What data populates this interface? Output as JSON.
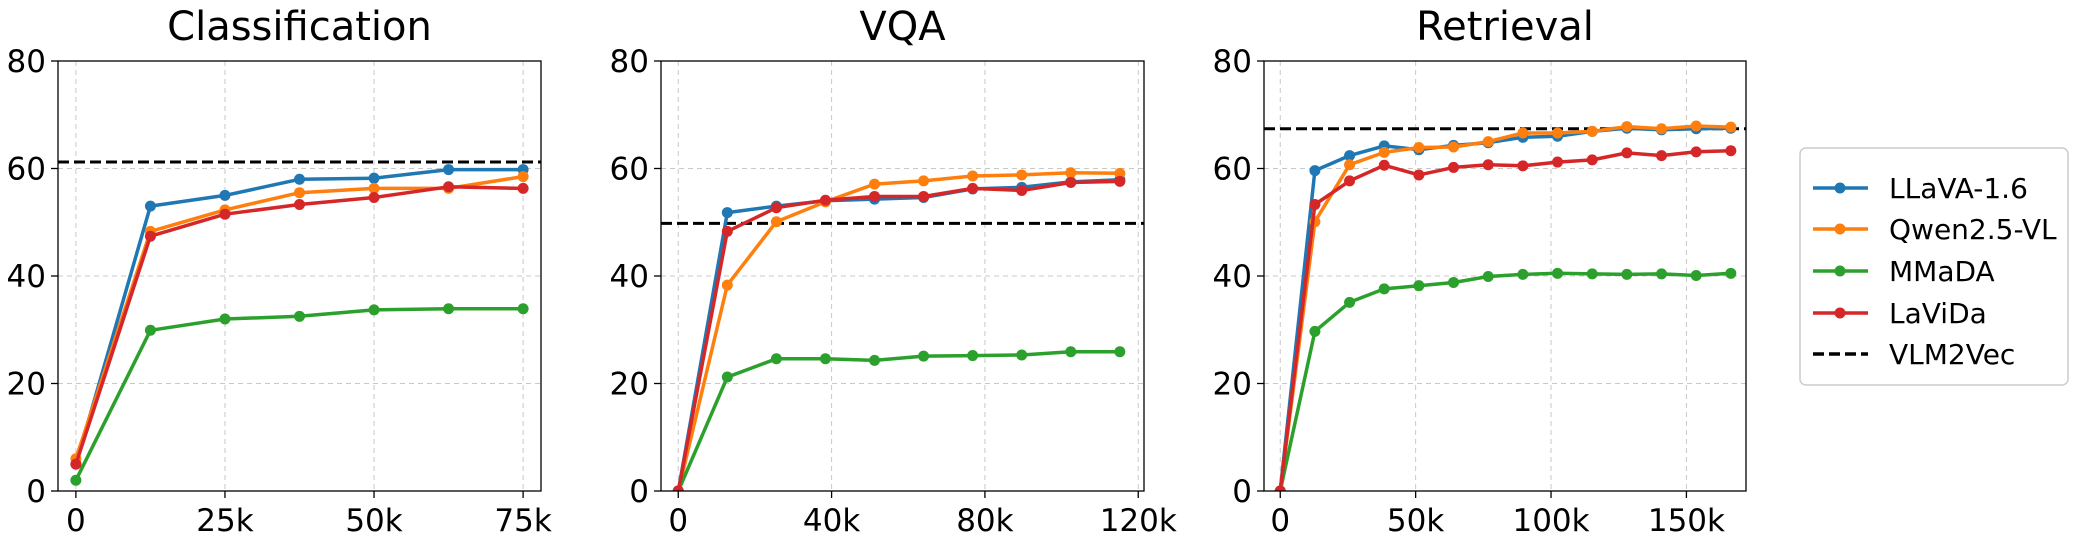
{
  "legend": {
    "entries": [
      {
        "label": "LLaVA-1.6",
        "color": "#1f77b4",
        "style": "line-marker"
      },
      {
        "label": "Qwen2.5-VL",
        "color": "#ff7f0e",
        "style": "line-marker"
      },
      {
        "label": "MMaDA",
        "color": "#2ca02c",
        "style": "line-marker"
      },
      {
        "label": "LaViDa",
        "color": "#d62728",
        "style": "line-marker"
      },
      {
        "label": "VLM2Vec",
        "color": "#000000",
        "style": "dashed"
      }
    ]
  },
  "chart_data": [
    {
      "type": "line",
      "title": "Classification",
      "xlim": [
        -3000,
        78000
      ],
      "ylim": [
        0,
        80
      ],
      "xticks": [
        0,
        25000,
        50000,
        75000
      ],
      "xtick_labels": [
        "0",
        "25k",
        "50k",
        "75k"
      ],
      "yticks": [
        0,
        20,
        40,
        60,
        80
      ],
      "ytick_labels": [
        "0",
        "20",
        "40",
        "60",
        "80"
      ],
      "grid": true,
      "x": [
        0,
        12500,
        25000,
        37500,
        50000,
        62500,
        75000
      ],
      "series": [
        {
          "name": "LLaVA-1.6",
          "color": "#1f77b4",
          "values": [
            5,
            53,
            55,
            58,
            58.2,
            59.8,
            59.8
          ]
        },
        {
          "name": "Qwen2.5-VL",
          "color": "#ff7f0e",
          "values": [
            6,
            48.3,
            52.3,
            55.5,
            56.3,
            56.3,
            58.5
          ]
        },
        {
          "name": "MMaDA",
          "color": "#2ca02c",
          "values": [
            2,
            29.9,
            32,
            32.5,
            33.7,
            33.9,
            33.9
          ]
        },
        {
          "name": "LaViDa",
          "color": "#d62728",
          "values": [
            5,
            47.4,
            51.5,
            53.3,
            54.6,
            56.6,
            56.3
          ]
        }
      ],
      "reference": {
        "name": "VLM2Vec",
        "value": 61.2
      }
    },
    {
      "type": "line",
      "title": "VQA",
      "xlim": [
        -4500,
        121500
      ],
      "ylim": [
        0,
        80
      ],
      "xticks": [
        0,
        40000,
        80000,
        120000
      ],
      "xtick_labels": [
        "0",
        "40k",
        "80k",
        "120k"
      ],
      "yticks": [
        0,
        20,
        40,
        60,
        80
      ],
      "ytick_labels": [
        "0",
        "20",
        "40",
        "60",
        "80"
      ],
      "grid": true,
      "x": [
        0,
        12800,
        25600,
        38400,
        51200,
        64000,
        76800,
        89600,
        102400,
        115200
      ],
      "series": [
        {
          "name": "LLaVA-1.6",
          "color": "#1f77b4",
          "values": [
            0,
            51.8,
            53,
            54,
            54.3,
            54.6,
            56.2,
            56.5,
            57.5,
            57.9
          ]
        },
        {
          "name": "Qwen2.5-VL",
          "color": "#ff7f0e",
          "values": [
            0,
            38.3,
            50.1,
            53.8,
            57.1,
            57.7,
            58.6,
            58.8,
            59.2,
            59.1
          ]
        },
        {
          "name": "MMaDA",
          "color": "#2ca02c",
          "values": [
            0,
            21.2,
            24.6,
            24.6,
            24.3,
            25.1,
            25.2,
            25.3,
            25.9,
            25.9
          ]
        },
        {
          "name": "LaViDa",
          "color": "#d62728",
          "values": [
            0,
            48.3,
            52.7,
            54.1,
            54.8,
            54.8,
            56.3,
            55.9,
            57.4,
            57.6
          ]
        }
      ],
      "reference": {
        "name": "VLM2Vec",
        "value": 49.8
      }
    },
    {
      "type": "line",
      "title": "Retrieval",
      "xlim": [
        -6000,
        172000
      ],
      "ylim": [
        0,
        80
      ],
      "xticks": [
        0,
        50000,
        100000,
        150000
      ],
      "xtick_labels": [
        "0",
        "50k",
        "100k",
        "150k"
      ],
      "yticks": [
        0,
        20,
        40,
        60,
        80
      ],
      "ytick_labels": [
        "0",
        "20",
        "40",
        "60",
        "80"
      ],
      "grid": true,
      "x": [
        0,
        12800,
        25600,
        38400,
        51200,
        64000,
        76800,
        89600,
        102400,
        115200,
        128000,
        140800,
        153600,
        166400
      ],
      "series": [
        {
          "name": "LLaVA-1.6",
          "color": "#1f77b4",
          "values": [
            0,
            59.6,
            62.4,
            64.2,
            63.5,
            64.3,
            64.8,
            65.8,
            66,
            66.9,
            67.5,
            67.2,
            67.4,
            67.5
          ]
        },
        {
          "name": "Qwen2.5-VL",
          "color": "#ff7f0e",
          "values": [
            0,
            50.1,
            60.7,
            63,
            63.9,
            64,
            65,
            66.6,
            66.6,
            66.9,
            67.8,
            67.4,
            67.9,
            67.7
          ]
        },
        {
          "name": "MMaDA",
          "color": "#2ca02c",
          "values": [
            0,
            29.7,
            35.1,
            37.6,
            38.2,
            38.8,
            39.9,
            40.3,
            40.5,
            40.4,
            40.3,
            40.4,
            40.1,
            40.5
          ]
        },
        {
          "name": "LaViDa",
          "color": "#d62728",
          "values": [
            0,
            53.3,
            57.7,
            60.6,
            58.8,
            60.2,
            60.7,
            60.5,
            61.2,
            61.6,
            62.9,
            62.4,
            63.1,
            63.3
          ]
        }
      ],
      "reference": {
        "name": "VLM2Vec",
        "value": 67.4
      }
    }
  ]
}
